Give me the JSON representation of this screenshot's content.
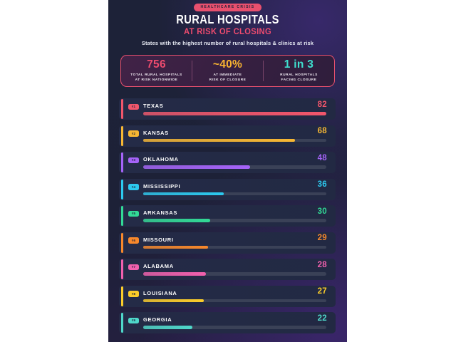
{
  "header": {
    "badge": "HEALTHCARE CRISIS",
    "title": "RURAL HOSPITALS",
    "subtitle": "AT RISK OF CLOSING",
    "description": "States with the highest number of rural hospitals & clinics at risk"
  },
  "stats": [
    {
      "value": "756",
      "label_line1": "TOTAL RURAL HOSPITALS",
      "label_line2": "AT RISK NATIONWIDE",
      "color": "#ed4b6e"
    },
    {
      "value": "~40%",
      "label_line1": "AT IMMEDIATE",
      "label_line2": "RISK OF CLOSURE",
      "color": "#f8b331"
    },
    {
      "value": "1 in 3",
      "label_line1": "RURAL HOSPITALS",
      "label_line2": "FACING CLOSURE",
      "color": "#3fe0cf"
    }
  ],
  "chart_data": {
    "type": "bar",
    "orientation": "horizontal",
    "title": "RURAL HOSPITALS AT RISK OF CLOSING",
    "subtitle": "States with the highest number of rural hospitals & clinics at risk",
    "categories": [
      "TEXAS",
      "KANSAS",
      "OKLAHOMA",
      "MISSISSIPPI",
      "ARKANSAS",
      "MISSOURI",
      "ALABAMA",
      "LOUISIANA",
      "GEORGIA"
    ],
    "values": [
      82,
      68,
      48,
      36,
      30,
      29,
      28,
      27,
      22
    ],
    "ranks": [
      "#1",
      "#2",
      "#3",
      "#4",
      "#5",
      "#6",
      "#7",
      "#8",
      "#9"
    ],
    "bar_colors": [
      "#f1566b",
      "#f7b733",
      "#a563f8",
      "#2cc9ef",
      "#32d996",
      "#f7882b",
      "#f160ad",
      "#fccd2a",
      "#4fd8ca"
    ],
    "xlim": [
      0,
      82
    ],
    "grid": false,
    "legend": false
  },
  "theme": {
    "page_background": "#ffffff",
    "poster_background": "#1d2138",
    "card_background": "#232a45",
    "track_color": "#3a4157",
    "accent": "#e8506e",
    "badge_text_color": "#1d2138",
    "title_color": "#ffffff"
  }
}
